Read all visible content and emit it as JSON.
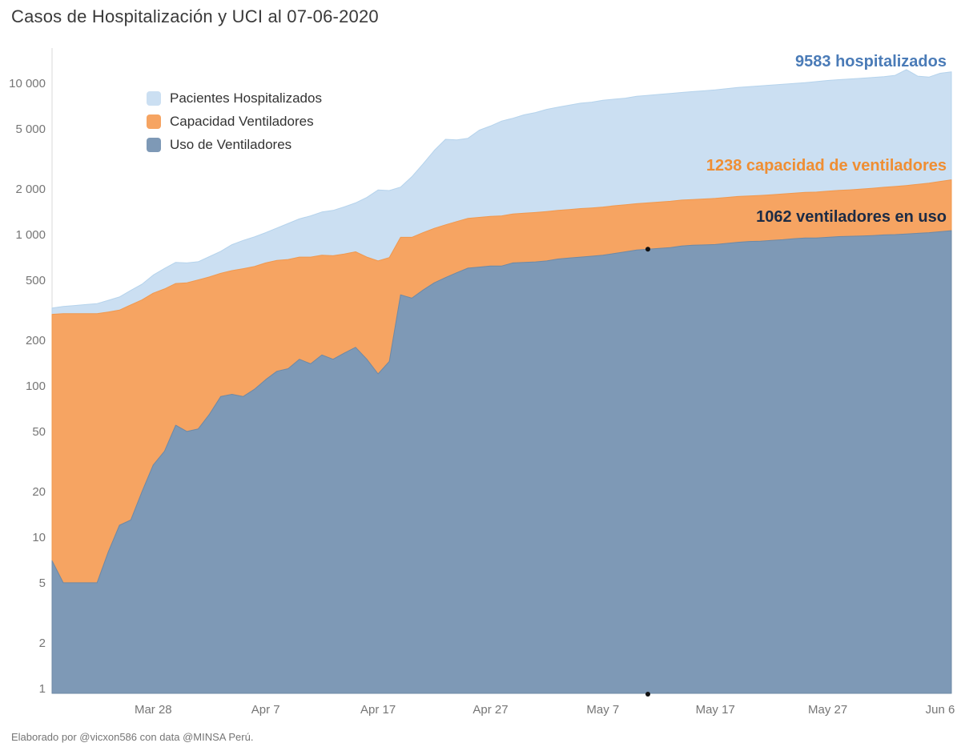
{
  "footer": {
    "text": "Elaborado por @vicxon586 con data @MINSA Perú."
  },
  "legend": {
    "items": [
      {
        "label": "Pacientes Hospitalizados",
        "color": "#cbdff2"
      },
      {
        "label": "Capacidad Ventiladores",
        "color": "#f6a462"
      },
      {
        "label": "Uso de Ventiladores",
        "color": "#7e99b6"
      }
    ]
  },
  "chart_data": {
    "type": "area",
    "stacked": true,
    "title": "Casos de Hospitalización y UCI al 07-06-2020",
    "y_scale": "log",
    "ylim": [
      1,
      12500
    ],
    "grid": false,
    "legend_position": "top-left-inside",
    "y_ticks": [
      {
        "value": 1,
        "label": "1"
      },
      {
        "value": 2,
        "label": "2"
      },
      {
        "value": 5,
        "label": "5"
      },
      {
        "value": 10,
        "label": "10"
      },
      {
        "value": 20,
        "label": "20"
      },
      {
        "value": 50,
        "label": "50"
      },
      {
        "value": 100,
        "label": "100"
      },
      {
        "value": 200,
        "label": "200"
      },
      {
        "value": 500,
        "label": "500"
      },
      {
        "value": 1000,
        "label": "1 000"
      },
      {
        "value": 2000,
        "label": "2 000"
      },
      {
        "value": 5000,
        "label": "5 000"
      },
      {
        "value": 10000,
        "label": "10 000"
      }
    ],
    "x": {
      "start_date": "2020-03-19",
      "end_date": "2020-06-07",
      "frequency": "daily",
      "tick_labels": [
        "Mar 28",
        "Apr 7",
        "Apr 17",
        "Apr 27",
        "May 7",
        "May 17",
        "May 27",
        "Jun 6"
      ],
      "tick_day_indices": [
        9,
        19,
        29,
        39,
        49,
        59,
        69,
        79
      ]
    },
    "series": [
      {
        "name": "Uso de Ventiladores",
        "color": "#7e99b6",
        "edge_color": "#6d89a6",
        "final_value": 1062,
        "values": [
          7,
          5,
          5,
          5,
          5,
          8,
          12,
          13,
          20,
          30,
          37,
          55,
          50,
          52,
          65,
          85,
          88,
          85,
          95,
          110,
          125,
          130,
          150,
          140,
          160,
          150,
          165,
          180,
          150,
          120,
          145,
          400,
          380,
          430,
          480,
          520,
          560,
          600,
          610,
          620,
          620,
          650,
          655,
          660,
          670,
          690,
          700,
          710,
          720,
          730,
          750,
          770,
          790,
          800,
          810,
          820,
          840,
          850,
          855,
          860,
          875,
          890,
          900,
          905,
          915,
          925,
          940,
          950,
          950,
          960,
          970,
          975,
          980,
          985,
          995,
          1000,
          1010,
          1020,
          1030,
          1045,
          1062
        ]
      },
      {
        "name": "Capacidad Ventiladores",
        "color": "#f6a462",
        "edge_color": "#f0984e",
        "final_value": 1238,
        "values": [
          290,
          295,
          295,
          295,
          295,
          300,
          305,
          330,
          350,
          380,
          400,
          420,
          430,
          450,
          460,
          470,
          490,
          510,
          520,
          540,
          550,
          555,
          560,
          570,
          570,
          575,
          580,
          590,
          560,
          550,
          560,
          560,
          580,
          600,
          620,
          640,
          660,
          680,
          690,
          700,
          710,
          720,
          730,
          740,
          750,
          755,
          765,
          775,
          780,
          790,
          800,
          805,
          810,
          820,
          830,
          840,
          850,
          855,
          865,
          875,
          885,
          895,
          900,
          910,
          920,
          930,
          940,
          950,
          960,
          975,
          990,
          1000,
          1020,
          1040,
          1060,
          1080,
          1100,
          1130,
          1160,
          1200,
          1238
        ]
      },
      {
        "name": "Pacientes Hospitalizados",
        "color": "#cbdff2",
        "edge_color": "#b5d3ec",
        "final_value": 9583,
        "values": [
          30,
          35,
          40,
          45,
          50,
          60,
          70,
          85,
          100,
          130,
          160,
          180,
          170,
          160,
          190,
          220,
          280,
          320,
          350,
          380,
          430,
          500,
          560,
          620,
          680,
          720,
          780,
          850,
          1050,
          1300,
          1250,
          1100,
          1450,
          1900,
          2500,
          3100,
          3000,
          3050,
          3600,
          3900,
          4300,
          4500,
          4800,
          5000,
          5300,
          5500,
          5700,
          5900,
          6000,
          6200,
          6300,
          6400,
          6600,
          6700,
          6800,
          6900,
          7000,
          7100,
          7200,
          7300,
          7450,
          7600,
          7700,
          7800,
          7900,
          8000,
          8100,
          8200,
          8350,
          8500,
          8600,
          8700,
          8800,
          8900,
          9000,
          9200,
          10200,
          9000,
          8800,
          9400,
          9583
        ]
      }
    ],
    "annotations": [
      {
        "text": "9583 hospitalizados",
        "color": "#4a7bb7",
        "series": "Pacientes Hospitalizados",
        "value": 9583
      },
      {
        "text": "1238 capacidad de ventiladores",
        "color": "#ef8e33",
        "series": "Capacidad Ventiladores",
        "value": 1238
      },
      {
        "text": "1062 ventiladores en uso",
        "color": "#1c2b45",
        "series": "Uso de Ventiladores",
        "value": 1062
      }
    ],
    "point_markers": [
      {
        "date": "2020-05-11",
        "value": 800
      },
      {
        "date": "2020-05-11",
        "value": 0.9
      }
    ]
  }
}
